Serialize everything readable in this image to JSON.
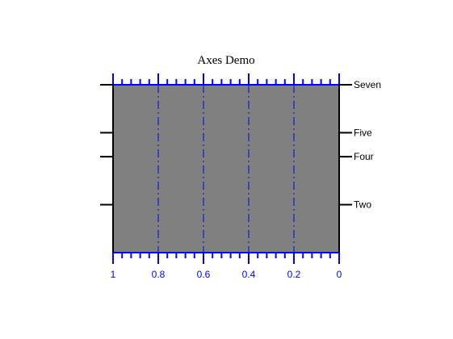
{
  "chart_data": {
    "type": "line",
    "title": "Axes Demo",
    "xlabel": "",
    "ylabel": "",
    "x_axis": {
      "range": [
        1,
        0
      ],
      "reversed": true,
      "major_ticks": [
        1,
        0.8,
        0.6,
        0.4,
        0.2,
        0
      ],
      "tick_labels": [
        "1",
        "0.8",
        "0.6",
        "0.4",
        "0.2",
        "0"
      ],
      "minor_per_major": 5,
      "grid": true,
      "grid_style": "dash-dot"
    },
    "y_axis": {
      "range": [
        0,
        7
      ],
      "major_ticks": [
        2,
        4,
        5,
        7
      ],
      "tick_labels": [
        "Two",
        "Four",
        "Five",
        "Seven"
      ],
      "label_side": "right",
      "grid": false
    },
    "series": [],
    "colors": {
      "plot_background": "#808080",
      "x_axis": "#0000ff",
      "y_axis": "#000000",
      "grid": "#0000ff",
      "page_background": "#ffffff"
    }
  }
}
